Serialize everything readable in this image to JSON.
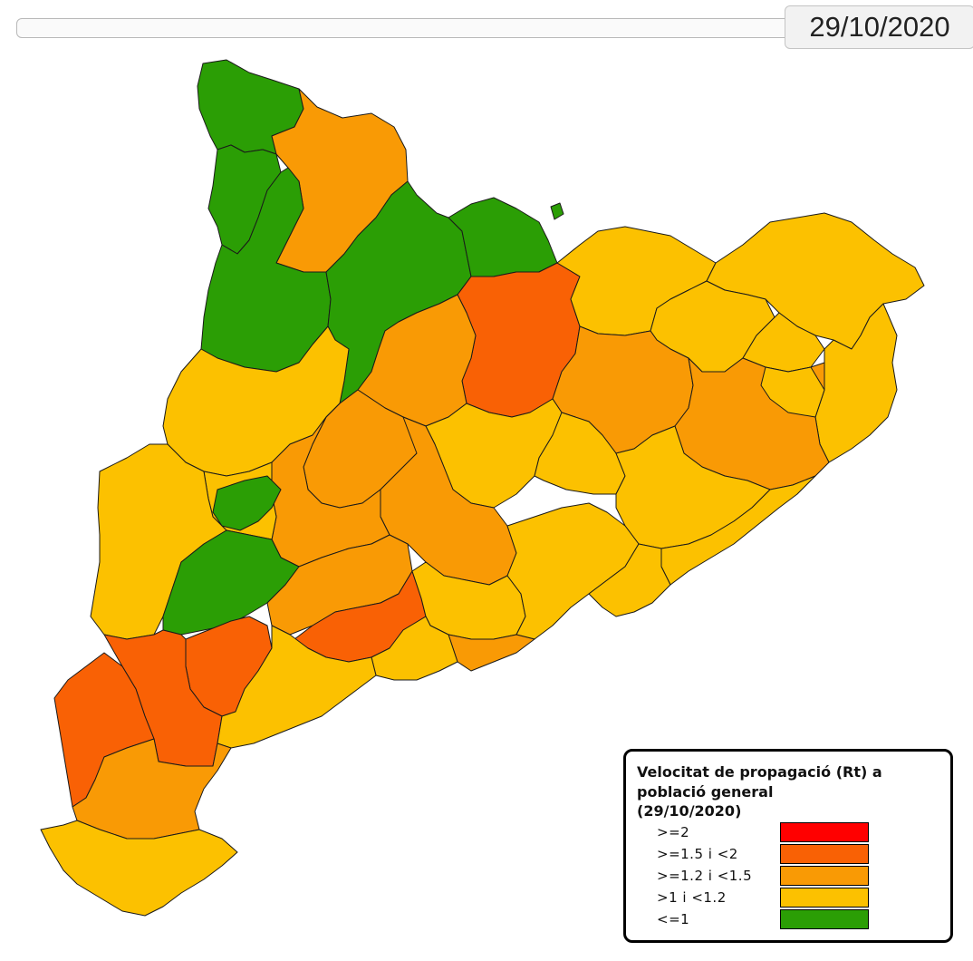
{
  "header": {
    "date_label": "29/10/2020"
  },
  "legend": {
    "title": "Velocitat de propagació (Rt) a població general",
    "date": "(29/10/2020)",
    "items": [
      {
        "label": ">=2",
        "color": "#ff0000"
      },
      {
        "label": ">=1.5 i <2",
        "color": "#f96105"
      },
      {
        "label": ">=1.2 i <1.5",
        "color": "#f99a05"
      },
      {
        "label": ">1 i <1.2",
        "color": "#fcc100"
      },
      {
        "label": "<=1",
        "color": "#2b9e05"
      }
    ]
  },
  "map": {
    "regions": [
      {
        "level": "<=1"
      },
      {
        "level": ">=1.2 i <1.5"
      },
      {
        "level": "<=1"
      },
      {
        "level": "<=1"
      },
      {
        "level": "<=1"
      },
      {
        "level": "<=1"
      },
      {
        "level": ">=1.5 i <2"
      },
      {
        "level": ">1 i <1.2"
      },
      {
        "level": ">1 i <1.2"
      },
      {
        "level": ">1 i <1.2"
      },
      {
        "level": ">1 i <1.2"
      },
      {
        "level": ">1 i <1.2"
      },
      {
        "level": ">=1.2 i <1.5"
      },
      {
        "level": ">=1.2 i <1.5"
      },
      {
        "level": ">1 i <1.2"
      },
      {
        "level": ">=1.2 i <1.5"
      },
      {
        "level": ">1 i <1.2"
      },
      {
        "level": ">=1.2 i <1.5"
      },
      {
        "level": ">1 i <1.2"
      },
      {
        "level": ">1 i <1.2"
      },
      {
        "level": ">1 i <1.2"
      },
      {
        "level": ">1 i <1.2"
      },
      {
        "level": ">=1.2 i <1.5"
      },
      {
        "level": ">=1.2 i <1.5"
      },
      {
        "level": ">1 i <1.2"
      },
      {
        "level": ">1 i <1.2"
      },
      {
        "level": "<=1"
      },
      {
        "level": "<=1"
      },
      {
        "level": ">=1.2 i <1.5"
      },
      {
        "level": ">=1.5 i <2"
      },
      {
        "level": ">1 i <1.2"
      },
      {
        "level": ">1 i <1.2"
      },
      {
        "level": ">1 i <1.2"
      },
      {
        "level": ">=1.2 i <1.5"
      },
      {
        "level": ">1 i <1.2"
      },
      {
        "level": ">=1.5 i <2"
      },
      {
        "level": ">=1.5 i <2"
      },
      {
        "level": ">=1.5 i <2"
      },
      {
        "level": ">1 i <1.2"
      },
      {
        "level": ">=1.2 i <1.5"
      },
      {
        "level": ">1 i <1.2"
      }
    ]
  }
}
